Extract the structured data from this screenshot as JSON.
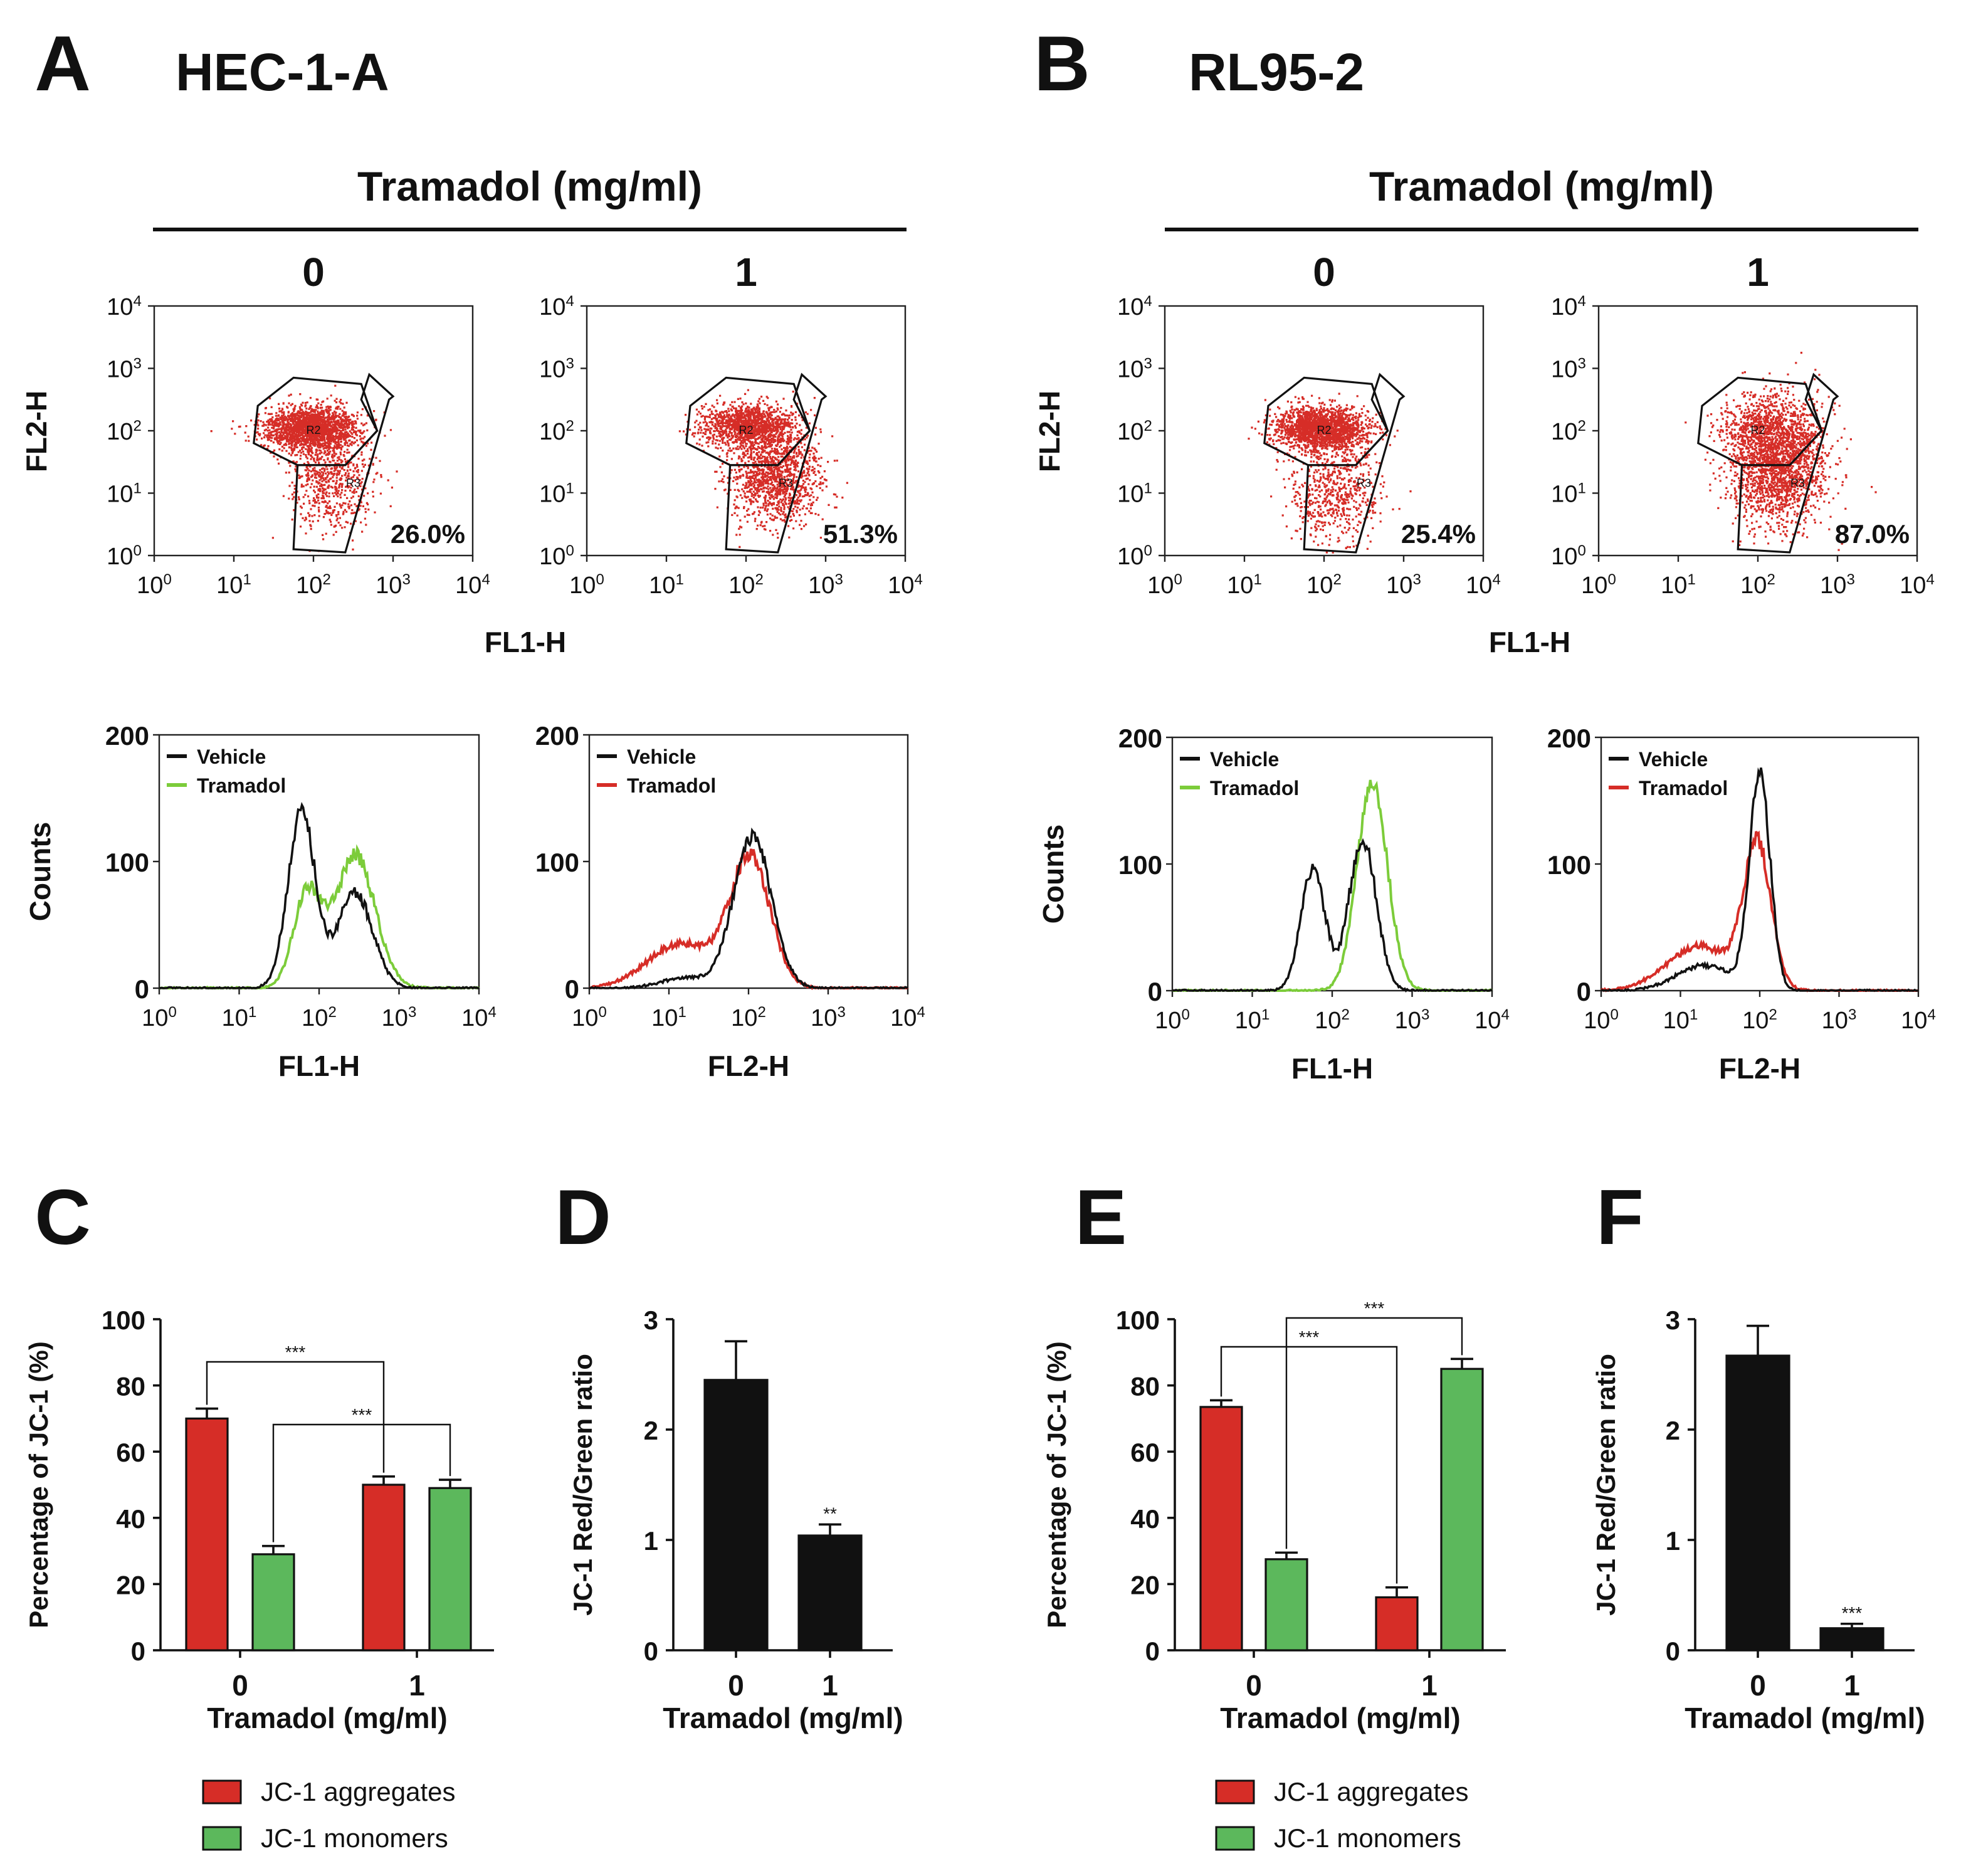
{
  "colors": {
    "red": "#d62d27",
    "green": "#5cb85c",
    "lime": "#7ccc3a",
    "black": "#111111"
  },
  "panels": {
    "A": {
      "letter": "A",
      "cell_line": "HEC-1-A"
    },
    "B": {
      "letter": "B",
      "cell_line": "RL95-2"
    },
    "C": {
      "letter": "C"
    },
    "D": {
      "letter": "D"
    },
    "E": {
      "letter": "E"
    },
    "F": {
      "letter": "F"
    }
  },
  "flow": {
    "treatment_title": "Tramadol (mg/ml)",
    "dose_labels": [
      "0",
      "1"
    ],
    "scatter_xlabel": "FL1-H",
    "scatter_ylabel": "FL2-H",
    "gate_labels": [
      "R2",
      "R3"
    ],
    "decade_ticks": [
      "0",
      "1",
      "2",
      "3",
      "4"
    ],
    "tick_base": "10",
    "scatter_percents": [
      {
        "panel": "A",
        "dose": "0",
        "label": "26.0%"
      },
      {
        "panel": "A",
        "dose": "1",
        "label": "51.3%"
      },
      {
        "panel": "B",
        "dose": "0",
        "label": "25.4%"
      },
      {
        "panel": "B",
        "dose": "1",
        "label": "87.0%"
      }
    ],
    "hist_ylabel": "Counts",
    "hist_yticks": [
      "0",
      "100",
      "200"
    ],
    "legend_vehicle": "Vehicle",
    "legend_tramadol": "Tramadol",
    "histograms": [
      {
        "panel": "A",
        "xlabel": "FL1-H",
        "treat_color": "lime",
        "vehicle_peaks": [
          [
            1.78,
            140,
            0.17
          ],
          [
            2.45,
            75,
            0.22
          ]
        ],
        "treat_peaks": [
          [
            2.45,
            105,
            0.25
          ],
          [
            1.85,
            75,
            0.17
          ]
        ]
      },
      {
        "panel": "A",
        "xlabel": "FL2-H",
        "treat_color": "red",
        "vehicle_peaks": [
          [
            2.05,
            120,
            0.24
          ],
          [
            1.2,
            8,
            0.3
          ]
        ],
        "treat_peaks": [
          [
            2.02,
            102,
            0.25
          ],
          [
            1.15,
            35,
            0.42
          ]
        ]
      },
      {
        "panel": "B",
        "xlabel": "FL1-H",
        "treat_color": "lime",
        "vehicle_peaks": [
          [
            1.76,
            96,
            0.15
          ],
          [
            2.38,
            120,
            0.17
          ]
        ],
        "treat_peaks": [
          [
            2.5,
            165,
            0.19
          ]
        ]
      },
      {
        "panel": "B",
        "xlabel": "FL2-H",
        "treat_color": "red",
        "vehicle_peaks": [
          [
            2.0,
            170,
            0.13
          ],
          [
            1.3,
            20,
            0.35
          ]
        ],
        "treat_peaks": [
          [
            1.97,
            112,
            0.17
          ],
          [
            1.25,
            35,
            0.42
          ]
        ]
      }
    ]
  },
  "chart_data": [
    {
      "panel": "C",
      "type": "bar",
      "cell_line": "HEC-1-A",
      "categories": [
        "0",
        "1"
      ],
      "xlabel": "Tramadol (mg/ml)",
      "ylabel": "Percentage of JC-1 (%)",
      "ylim": [
        0,
        100
      ],
      "yticks": [
        "0",
        "20",
        "40",
        "60",
        "80",
        "100"
      ],
      "series": [
        {
          "name": "JC-1 aggregates",
          "color": "red",
          "values": [
            70,
            50
          ],
          "errors": [
            3,
            2.5
          ]
        },
        {
          "name": "JC-1 monomers",
          "color": "green",
          "values": [
            29,
            49
          ],
          "errors": [
            2.5,
            2.5
          ]
        }
      ],
      "significance": [
        {
          "label": "***"
        },
        {
          "label": "***"
        }
      ]
    },
    {
      "panel": "D",
      "type": "bar",
      "cell_line": "HEC-1-A",
      "categories": [
        "0",
        "1"
      ],
      "xlabel": "Tramadol (mg/ml)",
      "ylabel": "JC-1 Red/Green ratio",
      "ylim": [
        0,
        3
      ],
      "yticks": [
        "0",
        "1",
        "2",
        "3"
      ],
      "series": [
        {
          "name": "ratio",
          "color": "black",
          "values": [
            2.45,
            1.04
          ],
          "errors": [
            0.35,
            0.1
          ]
        }
      ],
      "significance": [
        {
          "label": "**"
        }
      ]
    },
    {
      "panel": "E",
      "type": "bar",
      "cell_line": "RL95-2",
      "categories": [
        "0",
        "1"
      ],
      "xlabel": "Tramadol (mg/ml)",
      "ylabel": "Percentage of JC-1 (%)",
      "ylim": [
        0,
        100
      ],
      "yticks": [
        "0",
        "20",
        "40",
        "60",
        "80",
        "100"
      ],
      "series": [
        {
          "name": "JC-1 aggregates",
          "color": "red",
          "values": [
            73.5,
            16
          ],
          "errors": [
            2,
            3
          ]
        },
        {
          "name": "JC-1 monomers",
          "color": "green",
          "values": [
            27.5,
            85
          ],
          "errors": [
            2,
            3
          ]
        }
      ],
      "significance": [
        {
          "label": "***"
        },
        {
          "label": "***"
        }
      ]
    },
    {
      "panel": "F",
      "type": "bar",
      "cell_line": "RL95-2",
      "categories": [
        "0",
        "1"
      ],
      "xlabel": "Tramadol (mg/ml)",
      "ylabel": "JC-1 Red/Green ratio",
      "ylim": [
        0,
        3
      ],
      "yticks": [
        "0",
        "1",
        "2",
        "3"
      ],
      "series": [
        {
          "name": "ratio",
          "color": "black",
          "values": [
            2.67,
            0.2
          ],
          "errors": [
            0.27,
            0.04
          ]
        }
      ],
      "significance": [
        {
          "label": "***"
        }
      ]
    }
  ],
  "legends": [
    {
      "panel": "C",
      "items": [
        {
          "label": "JC-1 aggregates",
          "color": "red"
        },
        {
          "label": "JC-1 monomers",
          "color": "green"
        }
      ]
    },
    {
      "panel": "E",
      "items": [
        {
          "label": "JC-1 aggregates",
          "color": "red"
        },
        {
          "label": "JC-1 monomers",
          "color": "green"
        }
      ]
    }
  ]
}
